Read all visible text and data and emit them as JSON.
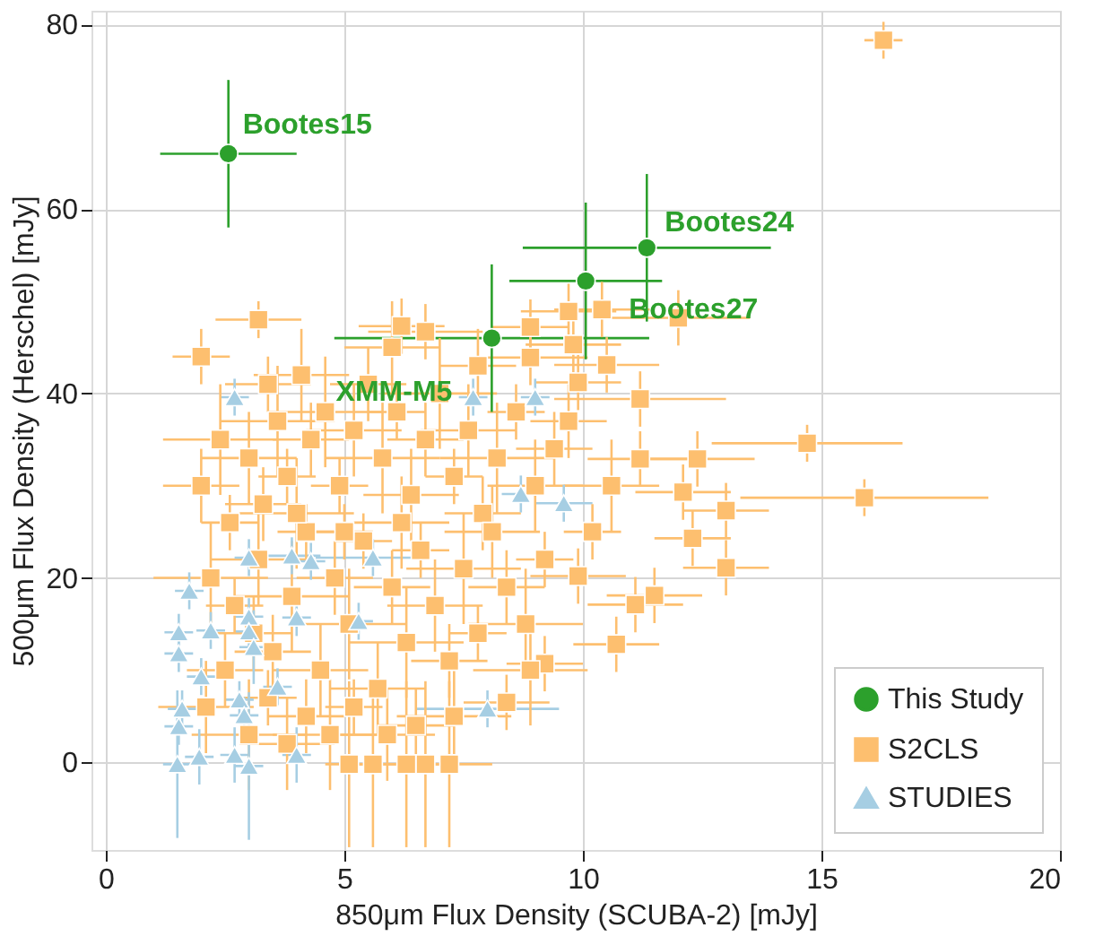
{
  "chart_data": {
    "type": "scatter",
    "xlabel": "850μm Flux Density (SCUBA-2) [mJy]",
    "ylabel": "500μm Flux Density (Herschel) [mJy]",
    "xlim": [
      -0.3,
      20
    ],
    "xticks": [
      0,
      5,
      10,
      15,
      20
    ],
    "ylim": [
      -9.5,
      81.5
    ],
    "yticks": [
      0,
      20,
      40,
      60,
      80
    ],
    "grid": true,
    "legend": "bottom right",
    "series": [
      {
        "name": "This Study",
        "color": "#2ca02c",
        "marker": "circle",
        "x": [
          2.57,
          11.34,
          10.06,
          8.09
        ],
        "values": [
          66,
          55.8,
          52.2,
          46
        ],
        "xerrors": [
          1.43,
          2.6,
          1.6,
          3.3
        ],
        "errors": [
          8,
          8,
          8.5,
          8
        ]
      },
      {
        "name": "S2CLS",
        "color": "#fdbf6f",
        "marker": "square",
        "x": [
          3.2,
          6.2,
          6.7,
          8.9,
          9.7,
          10.4,
          12.0,
          3.4,
          8.9,
          9.8,
          10.5,
          9.9,
          11.2,
          14.7,
          15.9,
          16.3,
          11.2,
          12.4,
          12.1,
          13.0,
          12.3,
          13.0,
          11.1,
          11.5,
          10.7,
          9.9,
          9.2,
          8.4,
          7.2,
          6.7,
          6.3,
          5.6,
          5.1,
          2.0,
          2.4,
          2.6,
          3.0,
          3.3,
          3.6,
          3.8,
          4.1,
          4.3,
          4.6,
          4.9,
          5.2,
          5.5,
          5.8,
          6.1,
          6.4,
          6.7,
          7.0,
          7.3,
          7.6,
          7.9,
          8.2,
          8.6,
          9.0,
          9.4,
          2.2,
          2.7,
          3.2,
          3.5,
          3.9,
          4.2,
          4.5,
          4.8,
          5.1,
          5.4,
          5.7,
          6.0,
          6.3,
          6.6,
          6.9,
          7.2,
          7.5,
          7.8,
          8.1,
          8.4,
          8.8,
          9.2,
          2.1,
          2.5,
          3.0,
          3.4,
          3.8,
          4.2,
          4.7,
          5.2,
          5.9,
          6.5,
          7.3,
          2.0,
          6.0,
          7.8,
          4.0,
          5.0,
          6.2,
          3.1,
          8.9,
          10.2,
          10.6,
          9.7
        ],
        "values": [
          48.0,
          47.3,
          46.7,
          47.2,
          48.9,
          49.1,
          48.2,
          41.0,
          43.9,
          45.3,
          43.1,
          41.2,
          39.4,
          34.6,
          28.7,
          78.3,
          32.9,
          32.9,
          29.3,
          27.3,
          24.3,
          21.1,
          17.1,
          18.1,
          12.8,
          20.2,
          10.7,
          6.5,
          -0.2,
          -0.2,
          -0.2,
          -0.2,
          -0.2,
          30,
          35,
          26,
          33,
          28,
          37,
          31,
          42,
          35,
          38,
          30,
          36,
          41,
          33,
          38,
          29,
          35,
          40,
          31,
          36,
          27,
          33,
          38,
          30,
          34,
          20,
          17,
          22,
          12,
          18,
          25,
          10,
          20,
          15,
          24,
          8,
          19,
          13,
          23,
          17,
          11,
          21,
          14,
          25,
          19,
          15,
          22,
          6,
          10,
          3,
          7,
          2,
          5,
          3,
          6,
          3,
          4,
          5,
          44,
          45,
          43,
          27,
          25,
          26,
          14,
          10,
          25,
          30,
          37
        ],
        "xerrors": [
          0.9,
          0.9,
          1.2,
          0.8,
          1.0,
          1.0,
          1.5,
          0.9,
          1.2,
          1.0,
          1.1,
          0.9,
          1.8,
          2.0,
          2.6,
          0.4,
          1.1,
          1.2,
          1.0,
          0.9,
          0.8,
          0.9,
          1.0,
          1.0,
          0.9,
          1.0,
          0.8,
          0.9,
          0.9,
          0.5,
          0.5,
          0.5,
          0.5,
          0.8,
          1.2,
          0.6,
          1.0,
          0.8,
          1.2,
          0.6,
          1.0,
          0.8,
          1.2,
          0.6,
          1.0,
          0.8,
          1.2,
          0.6,
          1.0,
          0.8,
          1.2,
          0.6,
          1.0,
          0.8,
          1.2,
          0.6,
          1.0,
          0.8,
          1.2,
          0.6,
          1.0,
          0.8,
          1.2,
          0.6,
          1.0,
          0.8,
          1.2,
          0.6,
          1.0,
          0.8,
          1.2,
          0.6,
          1.0,
          0.8,
          1.2,
          0.6,
          1.0,
          0.8,
          1.2,
          0.6,
          1.0,
          0.8,
          1.2,
          0.6,
          1.0,
          0.8,
          1.2,
          0.6,
          1.0,
          0.8,
          1.2,
          0.6,
          1.0,
          0.8,
          1.2,
          0.6,
          1.0,
          0.8,
          1.2,
          0.6,
          1.0,
          0.8
        ],
        "errors": [
          2,
          3,
          3,
          3,
          3,
          3,
          3,
          3,
          3,
          3,
          3,
          3,
          3,
          2,
          2,
          2,
          3,
          3,
          3,
          3,
          3,
          3,
          3,
          3,
          3,
          3,
          3,
          3,
          9,
          9,
          9,
          9,
          9,
          4,
          6,
          3,
          5,
          4,
          6,
          3,
          5,
          4,
          6,
          3,
          5,
          4,
          6,
          3,
          5,
          4,
          6,
          3,
          5,
          4,
          6,
          3,
          5,
          4,
          6,
          3,
          5,
          4,
          6,
          3,
          5,
          4,
          6,
          3,
          5,
          4,
          6,
          3,
          5,
          4,
          6,
          3,
          5,
          4,
          6,
          3,
          5,
          4,
          6,
          3,
          5,
          4,
          6,
          3,
          5,
          4,
          6,
          3,
          5,
          4,
          6,
          3,
          5,
          4,
          6,
          3,
          5,
          4
        ]
      },
      {
        "name": "STUDIES",
        "color": "#a6cee3",
        "marker": "triangle",
        "x": [
          2.7,
          7.7,
          9.0,
          8.7,
          9.6,
          3.0,
          3.9,
          4.3,
          5.6,
          1.75,
          3.0,
          4.0,
          5.3,
          2.2,
          1.53,
          3.0,
          3.1,
          1.53,
          2.0,
          3.6,
          2.8,
          1.6,
          2.9,
          8.0,
          1.53,
          1.96,
          2.7,
          1.5,
          3.0,
          4.0
        ],
        "values": [
          39.6,
          39.6,
          39.6,
          29.1,
          28.1,
          22.2,
          22.4,
          21.8,
          22.2,
          18.6,
          15.8,
          15.7,
          15.3,
          14.3,
          14.1,
          14.2,
          12.5,
          11.8,
          9.3,
          8.2,
          6.8,
          5.8,
          5.1,
          5.8,
          3.9,
          0.6,
          0.8,
          -0.2,
          -0.4,
          0.8
        ],
        "xerrors": [
          0.3,
          0.3,
          0.3,
          0.4,
          0.6,
          0.3,
          0.6,
          0.3,
          1.2,
          0.3,
          0.3,
          0.3,
          0.3,
          0.3,
          0.3,
          0.3,
          0.3,
          0.3,
          0.3,
          0.3,
          0.3,
          0.3,
          0.3,
          1.5,
          0.3,
          0.3,
          0.3,
          0.3,
          0.3,
          0.3
        ],
        "errors": [
          2,
          2,
          2,
          2,
          2,
          2,
          2,
          2,
          2,
          2,
          2,
          2,
          2,
          2,
          2,
          2,
          4,
          2,
          2,
          2,
          2,
          2,
          2,
          2,
          2,
          3,
          3,
          8,
          8,
          3
        ]
      }
    ],
    "annotations": [
      {
        "text": "Bootes15",
        "x": 2.57,
        "y": 66
      },
      {
        "text": "Bootes24",
        "x": 11.34,
        "y": 55.8
      },
      {
        "text": "Bootes27",
        "x": 10.06,
        "y": 52.2
      },
      {
        "text": "XMM-M5",
        "x": 8.09,
        "y": 46
      }
    ]
  }
}
